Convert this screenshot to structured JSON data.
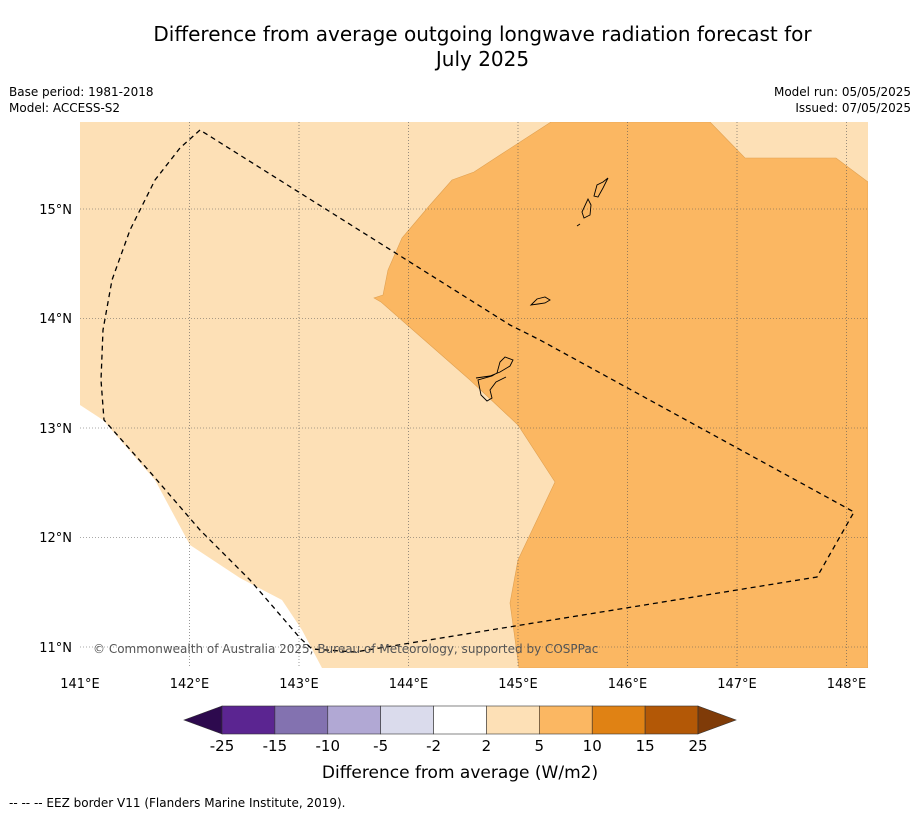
{
  "title_line1": "Difference from average outgoing longwave radiation forecast for",
  "title_line2": "July 2025",
  "base_period": "Base period: 1981-2018",
  "model": "Model: ACCESS-S2",
  "model_run": "Model run: 05/05/2025",
  "issued": "Issued: 07/05/2025",
  "copyright": "© Commonwealth of Australia 2025, Bureau of Meteorology, supported by COSPPac",
  "lon_ticks": [
    "141°E",
    "142°E",
    "143°E",
    "144°E",
    "145°E",
    "146°E",
    "147°E",
    "148°E"
  ],
  "lat_ticks": [
    "15°N",
    "14°N",
    "13°N",
    "12°N",
    "11°N"
  ],
  "colorbar": {
    "label": "Difference from average (W/m2)",
    "ticks": [
      "-25",
      "-15",
      "-10",
      "-5",
      "-2",
      "2",
      "5",
      "10",
      "15",
      "25"
    ],
    "colors": [
      "#5b2591",
      "#8372b0",
      "#b1a8d4",
      "#dadbec",
      "#ffffff",
      "#fde0b6",
      "#fbb762",
      "#e08214",
      "#b35806"
    ],
    "under_color": "#2d0a4e",
    "over_color": "#7f3b08"
  },
  "footnote": "--  --  -- EEZ border V11 (Flanders Marine Institute, 2019)."
}
